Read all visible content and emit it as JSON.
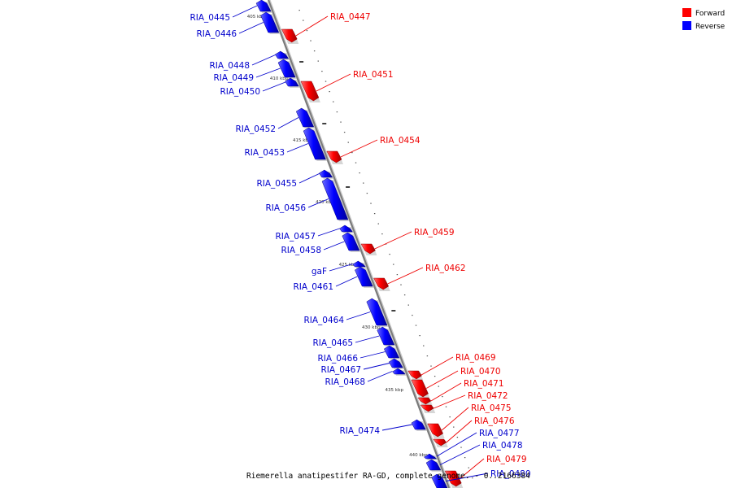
{
  "legend": [
    {
      "name": "Forward",
      "color": "#ff0000"
    },
    {
      "name": "Reverse",
      "color": "#0000ff"
    }
  ],
  "caption": "Riemerella anatipestifer RA-GD, complete genome. - 0..2166384",
  "scale_marks": [
    "405 kbp",
    "410 kbp",
    "415 kbp",
    "420 kbp",
    "425 kbp",
    "430 kbp",
    "435 kbp",
    "440 kbp"
  ],
  "genes": [
    {
      "label": "RIA_0445",
      "strand": "reverse"
    },
    {
      "label": "RIA_0446",
      "strand": "reverse"
    },
    {
      "label": "RIA_0447",
      "strand": "forward"
    },
    {
      "label": "RIA_0448",
      "strand": "reverse"
    },
    {
      "label": "RIA_0449",
      "strand": "reverse"
    },
    {
      "label": "RIA_0450",
      "strand": "reverse"
    },
    {
      "label": "RIA_0451",
      "strand": "forward"
    },
    {
      "label": "RIA_0452",
      "strand": "reverse"
    },
    {
      "label": "RIA_0453",
      "strand": "reverse"
    },
    {
      "label": "RIA_0454",
      "strand": "forward"
    },
    {
      "label": "RIA_0455",
      "strand": "reverse"
    },
    {
      "label": "RIA_0456",
      "strand": "reverse"
    },
    {
      "label": "RIA_0457",
      "strand": "reverse"
    },
    {
      "label": "RIA_0458",
      "strand": "reverse"
    },
    {
      "label": "RIA_0459",
      "strand": "forward"
    },
    {
      "label": "gaF",
      "strand": "reverse"
    },
    {
      "label": "RIA_0461",
      "strand": "reverse"
    },
    {
      "label": "RIA_0462",
      "strand": "forward"
    },
    {
      "label": "RIA_0464",
      "strand": "reverse"
    },
    {
      "label": "RIA_0465",
      "strand": "reverse"
    },
    {
      "label": "RIA_0466",
      "strand": "reverse"
    },
    {
      "label": "RIA_0467",
      "strand": "reverse"
    },
    {
      "label": "RIA_0468",
      "strand": "reverse"
    },
    {
      "label": "RIA_0469",
      "strand": "forward"
    },
    {
      "label": "RIA_0470",
      "strand": "forward"
    },
    {
      "label": "RIA_0471",
      "strand": "forward"
    },
    {
      "label": "RIA_0472",
      "strand": "forward"
    },
    {
      "label": "RIA_0474",
      "strand": "reverse"
    },
    {
      "label": "RIA_0475",
      "strand": "forward"
    },
    {
      "label": "RIA_0476",
      "strand": "forward"
    },
    {
      "label": "RIA_0477",
      "strand": "reverse"
    },
    {
      "label": "RIA_0478",
      "strand": "reverse"
    },
    {
      "label": "RIA_0479",
      "strand": "forward"
    },
    {
      "label": "RIA_0480",
      "strand": "reverse"
    }
  ]
}
